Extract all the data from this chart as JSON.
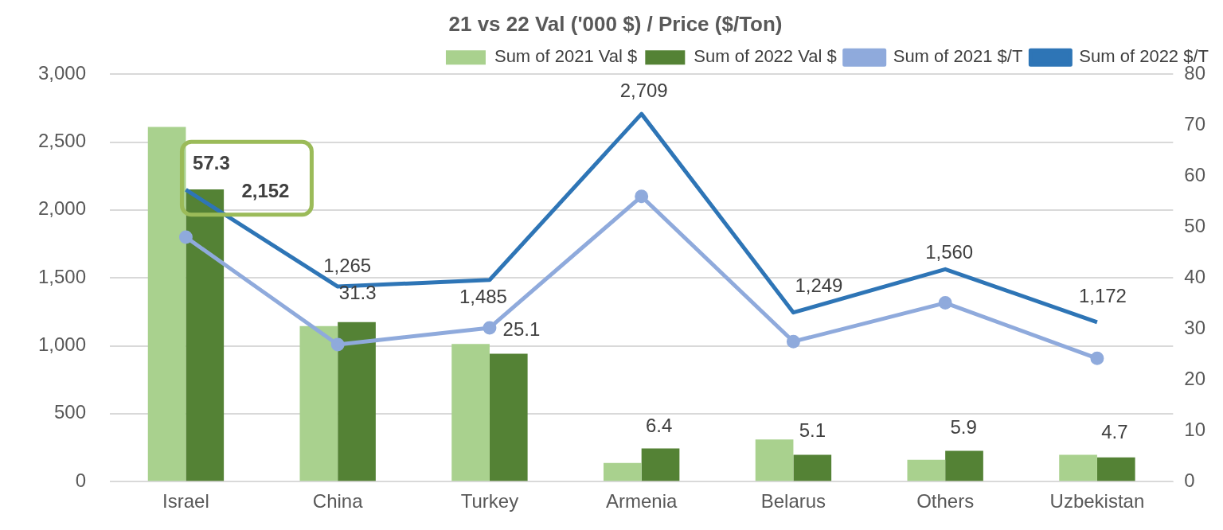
{
  "chart_data": {
    "type": "bar",
    "title": "21 vs 22 Val ('000 $) / Price ($/Ton)",
    "categories": [
      "Israel",
      "China",
      "Turkey",
      "Armenia",
      "Belarus",
      "Others",
      "Uzbekistan"
    ],
    "series": [
      {
        "name": "Sum of 2021 Val $",
        "color": "#a9d18e",
        "values": [
          2612,
          1145,
          1014,
          137,
          310,
          161,
          197
        ]
      },
      {
        "name": "Sum of 2022 Val $",
        "color": "#548235",
        "values": [
          2152,
          1175,
          942,
          245,
          197,
          227,
          179
        ]
      },
      {
        "name": "Sum of 2021 $/T",
        "type": "line",
        "axis": "y2",
        "marker": "circle",
        "color": "#8faadc",
        "values": [
          48.0,
          26.9,
          30.2,
          56.0,
          27.5,
          35.1,
          24.2
        ]
      },
      {
        "name": "Sum of 2022 $/T",
        "type": "line",
        "axis": "y2",
        "marker": "none",
        "color": "#2e75b6",
        "values": [
          57.3,
          38.3,
          39.6,
          72.2,
          33.2,
          41.7,
          31.3
        ]
      }
    ],
    "ylim": [
      0,
      3000
    ],
    "yticks": [
      {
        "value": 0,
        "label": "0"
      },
      {
        "value": 500,
        "label": "500"
      },
      {
        "value": 1000,
        "label": "1,000"
      },
      {
        "value": 1500,
        "label": "1,500"
      },
      {
        "value": 2000,
        "label": "2,000"
      },
      {
        "value": 2500,
        "label": "2,500"
      },
      {
        "value": 3000,
        "label": "3,000"
      }
    ],
    "y2lim": [
      0,
      80
    ],
    "y2ticks": [
      0,
      10,
      20,
      30,
      40,
      50,
      60,
      70,
      80
    ],
    "grid": "y",
    "legend": "top right",
    "annotations": [
      "57.3",
      "2,152",
      "1,265",
      "31.3",
      "1,485",
      "25.1",
      "2,709",
      "6.4",
      "1,249",
      "5.1",
      "1,560",
      "5.9",
      "1,172",
      "4.7"
    ]
  }
}
